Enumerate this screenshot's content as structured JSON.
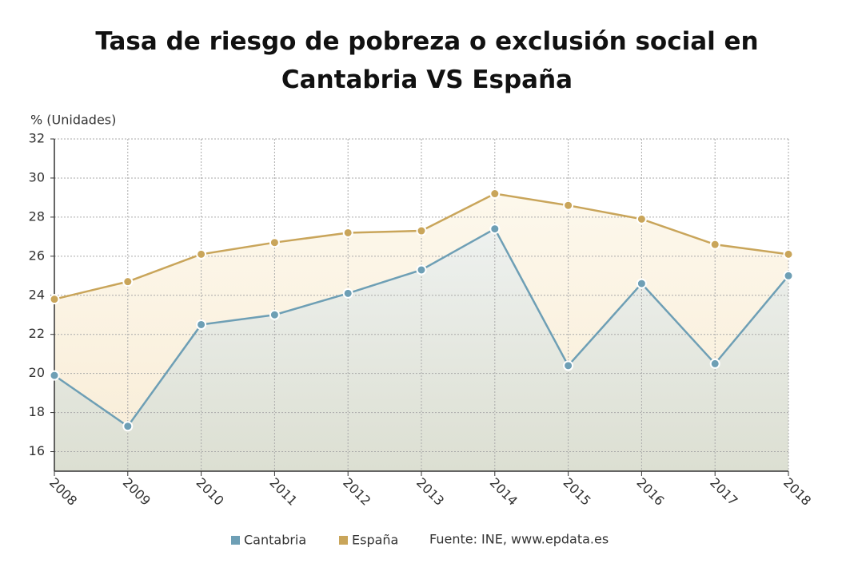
{
  "chart_data": {
    "type": "line",
    "title": "Tasa de riesgo de pobreza o exclusión social en Cantabria VS España",
    "y_label": "% (Unidades)",
    "source": "Fuente: INE, www.epdata.es",
    "categories": [
      "2008",
      "2009",
      "2010",
      "2011",
      "2012",
      "2013",
      "2014",
      "2015",
      "2016",
      "2017",
      "2018"
    ],
    "series": [
      {
        "name": "Cantabria",
        "color": "#6e9fb5",
        "values": [
          19.9,
          17.3,
          22.5,
          23.0,
          24.1,
          25.3,
          27.4,
          20.4,
          24.6,
          20.5,
          25.0
        ]
      },
      {
        "name": "España",
        "color": "#c9a55a",
        "values": [
          23.8,
          24.7,
          26.1,
          26.7,
          27.2,
          27.3,
          29.2,
          28.6,
          27.9,
          26.6,
          26.1
        ]
      }
    ],
    "ylim": [
      15,
      32
    ],
    "yticks": [
      16,
      18,
      20,
      22,
      24,
      26,
      28,
      30,
      32
    ],
    "grid": true
  }
}
